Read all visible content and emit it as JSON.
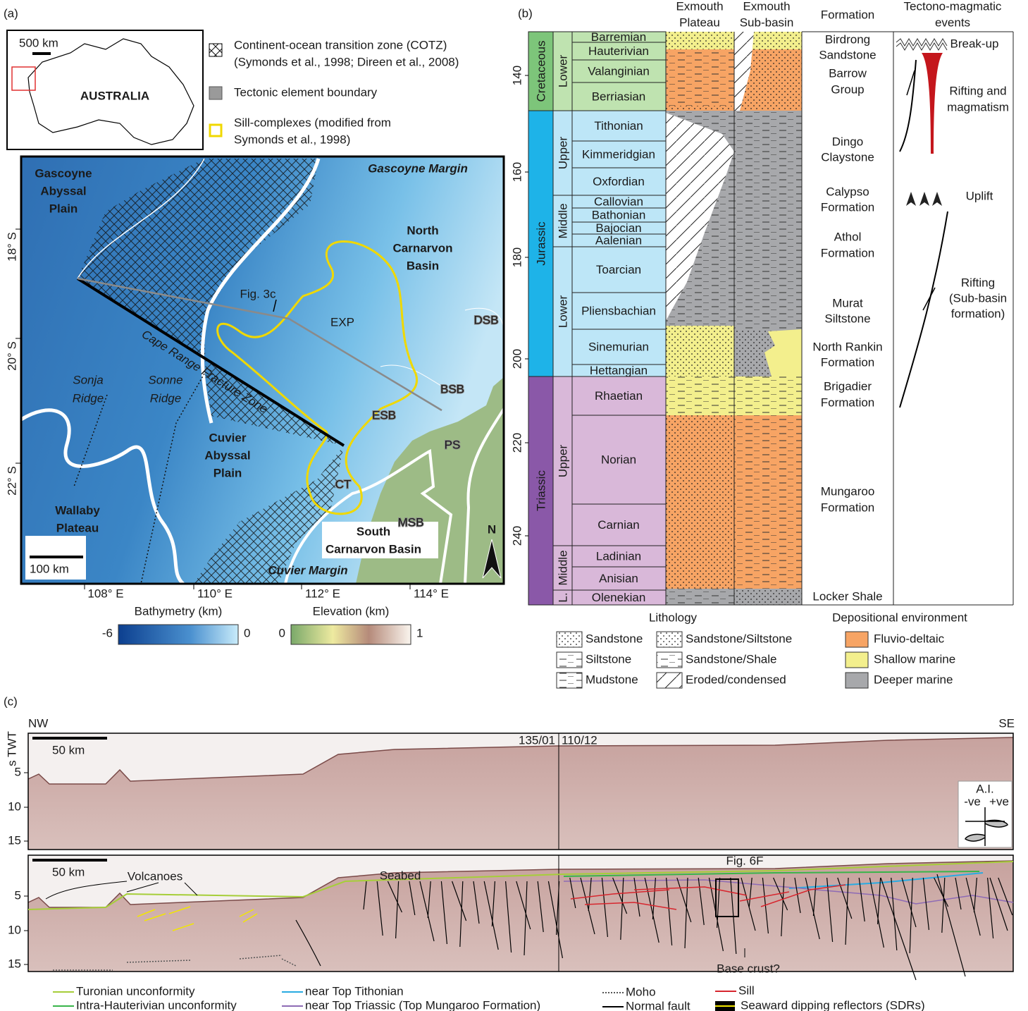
{
  "panel_a": {
    "label": "(a)",
    "inset": {
      "scale": "500 km",
      "country": "AUSTRALIA"
    },
    "legend": [
      [
        "Continent-ocean transition zone (COTZ)",
        "(Symonds et al., 1998; Direen et al., 2008)"
      ],
      [
        "Tectonic element boundary"
      ],
      [
        "Sill-complexes (modified from",
        "Symonds et al., 1998)"
      ]
    ],
    "labels": [
      [
        "Gascoyne",
        "Abyssal",
        "Plain"
      ],
      [
        "Gascoyne Margin"
      ],
      [
        "North",
        "Carnarvon",
        "Basin"
      ],
      [
        "Fig. 3c"
      ],
      [
        "EXP"
      ],
      [
        "DSB"
      ],
      [
        "BSB"
      ],
      [
        "ESB"
      ],
      [
        "PS"
      ],
      [
        "CT"
      ],
      [
        "MSB"
      ],
      [
        "Cape Range Fracture Zone"
      ],
      [
        "Sonja",
        "Ridge"
      ],
      [
        "Sonne",
        "Ridge"
      ],
      [
        "Cuvier",
        "Abyssal",
        "Plain"
      ],
      [
        "Wallaby",
        "Plateau"
      ],
      [
        "South",
        "Carnarvon Basin"
      ],
      [
        "Cuvier Margin"
      ]
    ],
    "latitudes": [
      "18° S",
      "20° S",
      "22° S"
    ],
    "longitudes": [
      "108° E",
      "110° E",
      "112° E",
      "114° E"
    ],
    "scale": "100 km",
    "north": "N",
    "colorbars": [
      {
        "title": "Bathymetry (km)",
        "min": -6,
        "max": 0
      },
      {
        "title": "Elevation (km)",
        "min": 0,
        "max": 1
      }
    ]
  },
  "panel_b": {
    "label": "(b)",
    "headers": [
      [
        "Exmouth",
        "Plateau"
      ],
      [
        "Exmouth",
        "Sub-basin"
      ],
      [
        "Formation"
      ],
      [
        "Tectono-magmatic",
        "events"
      ]
    ],
    "periods": [
      "Cretaceous",
      "Jurassic",
      "Triassic"
    ],
    "epochs": [
      "Lower",
      "Upper",
      "Middle",
      "Lower",
      "Upper",
      "Middle",
      "L."
    ],
    "stages": [
      "Barremian",
      "Hauterivian",
      "Valanginian",
      "Berriasian",
      "Tithonian",
      "Kimmeridgian",
      "Oxfordian",
      "Callovian",
      "Bathonian",
      "Bajocian",
      "Aalenian",
      "Toarcian",
      "Pliensbachian",
      "Sinemurian",
      "Hettangian",
      "Rhaetian",
      "Norian",
      "Carnian",
      "Ladinian",
      "Anisian",
      "Olenekian"
    ],
    "age_ticks": [
      140,
      160,
      180,
      200,
      220,
      240
    ],
    "formations": [
      [
        "Birdrong",
        "Sandstone"
      ],
      [
        "Barrow",
        "Group"
      ],
      [
        "Dingo",
        "Claystone"
      ],
      [
        "Calypso",
        "Formation"
      ],
      [
        "Athol",
        "Formation"
      ],
      [
        "Murat",
        "Siltstone"
      ],
      [
        "North Rankin",
        "Formation"
      ],
      [
        "Brigadier",
        "Formation"
      ],
      [
        "Mungaroo",
        "Formation"
      ],
      [
        "Locker Shale"
      ]
    ],
    "events": [
      [
        "Break-up"
      ],
      [
        "Rifting and",
        "magmatism"
      ],
      [
        "Uplift"
      ],
      [
        "Rifting",
        "(Sub-basin",
        "formation)"
      ]
    ],
    "lithology": {
      "title": "Lithology",
      "items": [
        "Sandstone",
        "Sandstone/Siltstone",
        "Siltstone",
        "Sandstone/Shale",
        "Mudstone",
        "Eroded/condensed"
      ]
    },
    "environment": {
      "title": "Depositional environment",
      "items": [
        {
          "name": "Fluvio-deltaic",
          "color": "#f7a464"
        },
        {
          "name": "Shallow marine",
          "color": "#f3ef8d"
        },
        {
          "name": "Deeper marine",
          "color": "#a7a8ab"
        }
      ]
    }
  },
  "panel_c": {
    "label": "(c)",
    "nw": "NW",
    "se": "SE",
    "axis_title": "s TWT",
    "yticks": [
      5,
      10,
      15
    ],
    "scale": "50 km",
    "lines": [
      "135/01",
      "110/12"
    ],
    "ai": {
      "title": "A.I.",
      "neg": "-ve",
      "pos": "+ve"
    },
    "annotations": [
      "Volcanoes",
      "Seabed",
      "Fig. 6F",
      "Base crust?"
    ],
    "legend": [
      {
        "name": "Turonian unconformity",
        "color": "#a6ce39"
      },
      {
        "name": "Intra-Hauterivian unconformity",
        "color": "#39b54a"
      },
      {
        "name": "near Top Tithonian",
        "color": "#29abe2"
      },
      {
        "name": "near Top Triassic (Top Mungaroo Formation)",
        "color": "#8e6bb5"
      },
      {
        "name": "Moho",
        "color": "#555555"
      },
      {
        "name": "Normal fault",
        "color": "#000000"
      },
      {
        "name": "Sill",
        "color": "#d7262e"
      },
      {
        "name": "Seaward dipping reflectors (SDRs)",
        "color": "#f2e600"
      }
    ]
  }
}
